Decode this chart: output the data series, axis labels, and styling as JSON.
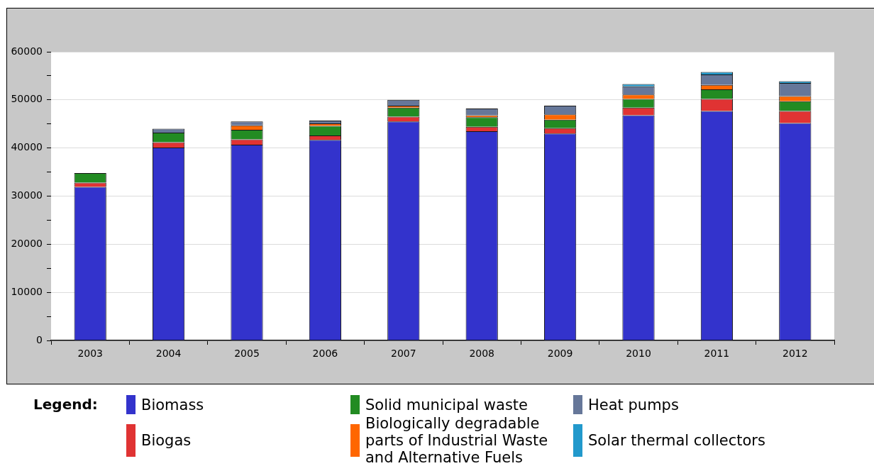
{
  "chart_data": {
    "type": "bar",
    "stacked": true,
    "categories": [
      "2003",
      "2004",
      "2005",
      "2006",
      "2007",
      "2008",
      "2009",
      "2010",
      "2011",
      "2012"
    ],
    "series": [
      {
        "name": "Biomass",
        "color": "#3333cc",
        "values": [
          31900,
          40100,
          40700,
          41700,
          45500,
          43500,
          43000,
          46800,
          47700,
          45200
        ]
      },
      {
        "name": "Biogas",
        "color": "#e03333",
        "values": [
          900,
          1100,
          1100,
          900,
          1000,
          900,
          1100,
          1600,
          2500,
          2500
        ]
      },
      {
        "name": "Solid municipal waste",
        "color": "#228b22",
        "values": [
          2000,
          2000,
          2000,
          2000,
          1900,
          2000,
          1800,
          1800,
          2000,
          2000
        ]
      },
      {
        "name": "Biologically degradable parts of Industrial Waste and Alternative Fuels",
        "color": "#ff6600",
        "values": [
          null,
          null,
          900,
          500,
          400,
          400,
          1100,
          900,
          900,
          1100
        ]
      },
      {
        "name": "Heat pumps",
        "color": "#667799",
        "values": [
          null,
          800,
          800,
          600,
          1200,
          1400,
          1800,
          1700,
          2200,
          2700
        ]
      },
      {
        "name": "Solar thermal collectors",
        "color": "#2299cc",
        "values": [
          null,
          null,
          null,
          null,
          null,
          null,
          null,
          500,
          500,
          400
        ]
      }
    ],
    "ylim": [
      0,
      60000
    ],
    "yticks": [
      0,
      {
        "value": 5000,
        "label": null
      },
      10000,
      {
        "value": 15000,
        "label": null
      },
      20000,
      {
        "value": 25000,
        "label": null
      },
      30000,
      {
        "value": 35000,
        "label": null
      },
      40000,
      {
        "value": 45000,
        "label": null
      },
      50000,
      {
        "value": 55000,
        "label": null
      },
      60000
    ],
    "grid": "y",
    "legend": "bottom",
    "legend_title": "Legend:"
  }
}
